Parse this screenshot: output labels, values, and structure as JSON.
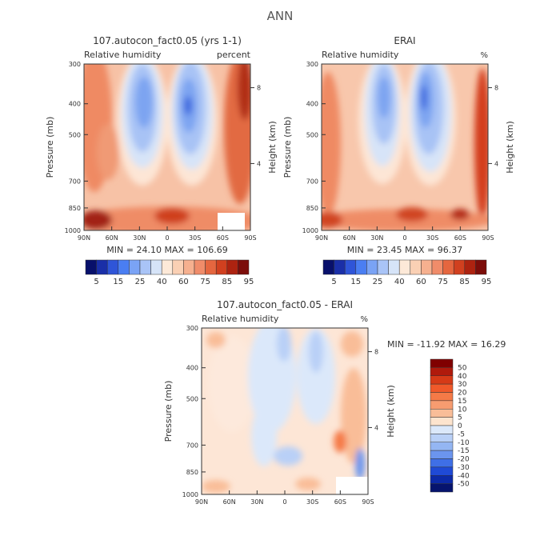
{
  "figure_title": "ANN",
  "panels": [
    {
      "title": "107.autocon_fact0.05 (yrs 1-1)",
      "var_label": "Relative humidity",
      "units": "percent",
      "ylabel": "Pressure (mb)",
      "ylabel_right": "Height (km)",
      "stats": "MIN =   24.10   MAX =  106.69"
    },
    {
      "title": "ERAI",
      "var_label": "Relative humidity",
      "units": "%",
      "ylabel": "Pressure (mb)",
      "ylabel_right": "Height (km)",
      "stats": "MIN =   23.45   MAX =   96.37"
    },
    {
      "title": "107.autocon_fact0.05 - ERAI",
      "var_label": "Relative humidity",
      "units": "%",
      "ylabel": "Pressure (mb)",
      "ylabel_right": "Height (km)",
      "stats": "MIN = -11.92   MAX =   16.29"
    }
  ],
  "x_ticks": [
    "90N",
    "60N",
    "30N",
    "0",
    "30S",
    "60S",
    "90S"
  ],
  "p_ticks": [
    "300",
    "400",
    "500",
    "700",
    "850",
    "1000"
  ],
  "h_ticks": [
    "8",
    "4"
  ],
  "colorbar_rh": {
    "labels": [
      "5",
      "15",
      "25",
      "40",
      "60",
      "75",
      "85",
      "95"
    ],
    "colors": [
      "#08106b",
      "#1a2fa8",
      "#2f55d8",
      "#4a7ef2",
      "#7aa3f5",
      "#a9c4f7",
      "#d6e4f8",
      "#fde9d8",
      "#fad0b4",
      "#f6b08f",
      "#f08c6a",
      "#e5663f",
      "#d1401f",
      "#ad2310",
      "#7c0d0a"
    ]
  },
  "colorbar_diff": {
    "labels": [
      "50",
      "40",
      "30",
      "20",
      "15",
      "10",
      "5",
      "0",
      "-5",
      "-10",
      "-15",
      "-20",
      "-30",
      "-40",
      "-50"
    ],
    "colors": [
      "#800000",
      "#b01a0c",
      "#d63a17",
      "#f0592a",
      "#f57a47",
      "#f79c70",
      "#f9bd98",
      "#fde4ce",
      "#dbe8fa",
      "#b9d0f7",
      "#94b6f3",
      "#6b95ee",
      "#3f6fe6",
      "#1f4ad6",
      "#0c2aa8",
      "#06146e"
    ]
  },
  "chart_data": [
    {
      "type": "heatmap",
      "title": "107.autocon_fact0.05 (yrs 1-1)",
      "subtitle": "Relative humidity",
      "units": "percent",
      "x_axis": {
        "type": "latitude",
        "range": [
          90,
          -90
        ],
        "ticks": [
          "90N",
          "60N",
          "30N",
          "0",
          "30S",
          "60S",
          "90S"
        ]
      },
      "y_axis": {
        "label": "Pressure (mb)",
        "scale": "log",
        "range": [
          300,
          1000
        ],
        "ticks": [
          300,
          400,
          500,
          700,
          850,
          1000
        ]
      },
      "y_axis_right": {
        "label": "Height (km)",
        "ticks": [
          8,
          4
        ]
      },
      "min": 24.1,
      "max": 106.69,
      "contour_levels": [
        5,
        10,
        15,
        20,
        25,
        30,
        40,
        50,
        60,
        70,
        75,
        80,
        85,
        90,
        95
      ]
    },
    {
      "type": "heatmap",
      "title": "ERAI",
      "subtitle": "Relative humidity",
      "units": "%",
      "x_axis": {
        "type": "latitude",
        "range": [
          90,
          -90
        ],
        "ticks": [
          "90N",
          "60N",
          "30N",
          "0",
          "30S",
          "60S",
          "90S"
        ]
      },
      "y_axis": {
        "label": "Pressure (mb)",
        "scale": "log",
        "range": [
          300,
          1000
        ],
        "ticks": [
          300,
          400,
          500,
          700,
          850,
          1000
        ]
      },
      "y_axis_right": {
        "label": "Height (km)",
        "ticks": [
          8,
          4
        ]
      },
      "min": 23.45,
      "max": 96.37,
      "contour_levels": [
        5,
        10,
        15,
        20,
        25,
        30,
        40,
        50,
        60,
        70,
        75,
        80,
        85,
        90,
        95
      ]
    },
    {
      "type": "heatmap",
      "title": "107.autocon_fact0.05 - ERAI",
      "subtitle": "Relative humidity",
      "units": "%",
      "x_axis": {
        "type": "latitude",
        "range": [
          90,
          -90
        ],
        "ticks": [
          "90N",
          "60N",
          "30N",
          "0",
          "30S",
          "60S",
          "90S"
        ]
      },
      "y_axis": {
        "label": "Pressure (mb)",
        "scale": "log",
        "range": [
          300,
          1000
        ],
        "ticks": [
          300,
          400,
          500,
          700,
          850,
          1000
        ]
      },
      "y_axis_right": {
        "label": "Height (km)",
        "ticks": [
          8,
          4
        ]
      },
      "min": -11.92,
      "max": 16.29,
      "contour_levels": [
        -50,
        -40,
        -30,
        -20,
        -15,
        -10,
        -5,
        0,
        5,
        10,
        15,
        20,
        30,
        40,
        50
      ]
    }
  ]
}
